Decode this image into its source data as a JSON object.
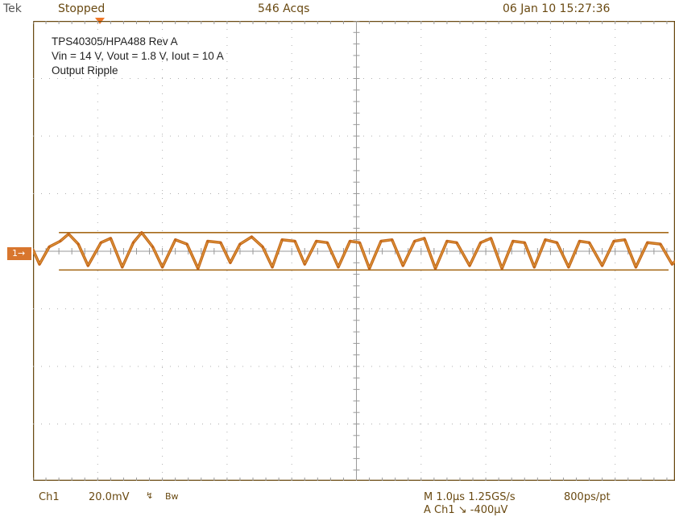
{
  "header": {
    "brand": "Tek",
    "status": "Stopped",
    "acquisitions": "546 Acqs",
    "datetime": "06 Jan 10 15:27:36"
  },
  "annotations": [
    "TPS40305/HPA488 Rev A",
    "Vin = 14 V, Vout = 1.8 V, Iout = 10 A",
    "Output Ripple"
  ],
  "channel_marker": "1→",
  "footer": {
    "channel": "Ch1",
    "scale": "20.0mV",
    "coupling": "↯",
    "bandwidth": "Bw",
    "timebase": "M 1.0µs 1.25GS/s",
    "points": "800ps/pt",
    "trigger": "A  Ch1  ↘  -400µV"
  },
  "colors": {
    "trace": "#c4671a",
    "trace_highlight": "#e0a040",
    "cursor": "#a66a1a",
    "grid": "#b0b0b0",
    "frame": "#6a4a12",
    "marker": "#d8762e"
  },
  "chart_data": {
    "type": "line",
    "title": "",
    "xlabel": "",
    "ylabel": "",
    "x_unit": "µs",
    "y_unit": "mV",
    "xlim": [
      0,
      10
    ],
    "ylim": [
      -80,
      80
    ],
    "grid": true,
    "x_divisions": 10,
    "y_divisions": 8,
    "cursors_mV": [
      6.5,
      -6.5
    ],
    "series": [
      {
        "x": [
          0,
          0.1,
          0.25,
          0.42,
          0.55,
          0.7,
          0.85,
          1.05,
          1.2,
          1.38,
          1.55,
          1.68,
          1.85,
          2.0,
          2.2,
          2.38,
          2.55,
          2.7,
          2.9,
          3.05,
          3.2,
          3.38,
          3.55,
          3.7,
          3.85,
          4.05,
          4.2,
          4.38,
          4.55,
          4.72,
          4.9,
          5.05,
          5.2,
          5.38,
          5.55,
          5.72,
          5.9,
          6.05,
          6.22,
          6.4,
          6.55,
          6.75,
          6.92,
          7.08,
          7.25,
          7.42,
          7.6,
          7.75,
          7.92,
          8.1,
          8.28,
          8.45,
          8.6,
          8.8,
          8.98,
          9.15,
          9.32,
          9.5,
          9.7,
          9.88,
          10.0
        ],
        "y": [
          0.5,
          -4.5,
          1.5,
          3.5,
          6.0,
          2.5,
          -5.0,
          3.0,
          4.5,
          -5.5,
          3.0,
          6.5,
          1.5,
          -5.5,
          4.0,
          2.5,
          -6.0,
          3.5,
          3.0,
          -4.0,
          2.5,
          5.0,
          1.5,
          -5.5,
          4.0,
          3.5,
          -4.5,
          3.5,
          3.0,
          -5.5,
          3.5,
          3.0,
          -6.0,
          3.5,
          4.0,
          -5.0,
          3.5,
          4.5,
          -6.0,
          3.5,
          3.0,
          -5.0,
          3.0,
          4.5,
          -6.0,
          3.5,
          3.0,
          -5.5,
          4.0,
          3.0,
          -5.5,
          3.5,
          3.0,
          -5.0,
          3.5,
          4.0,
          -5.5,
          3.0,
          2.5,
          -4.5,
          -2.0
        ]
      }
    ]
  }
}
